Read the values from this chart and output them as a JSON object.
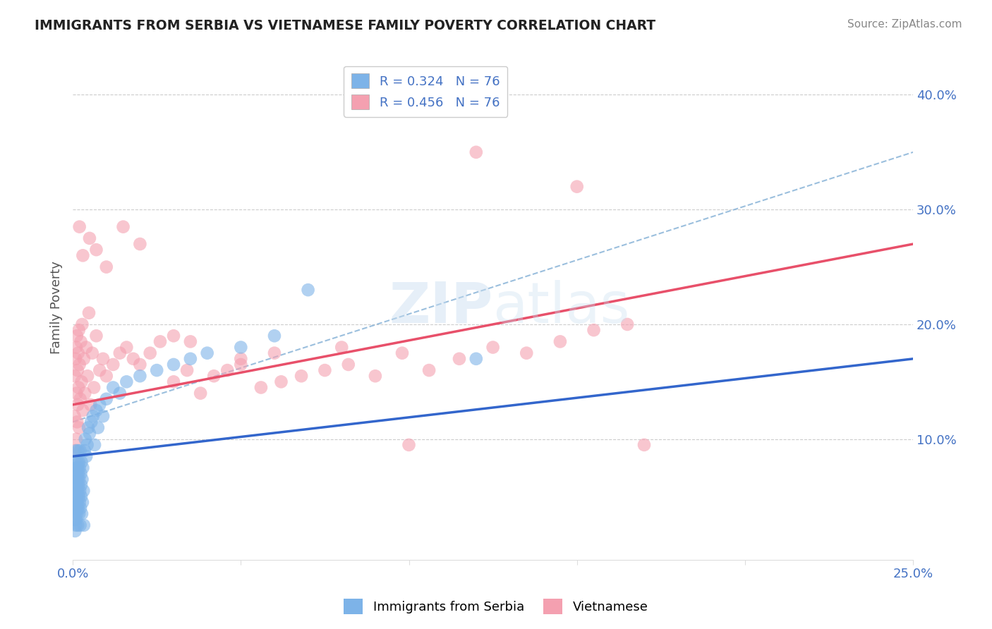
{
  "title": "IMMIGRANTS FROM SERBIA VS VIETNAMESE FAMILY POVERTY CORRELATION CHART",
  "source": "Source: ZipAtlas.com",
  "xlabel_bottom": "Immigrants from Serbia",
  "xlabel_right": "Vietnamese",
  "ylabel": "Family Poverty",
  "xlim": [
    0.0,
    0.25
  ],
  "ylim": [
    -0.005,
    0.435
  ],
  "y_ticks_right": [
    0.1,
    0.2,
    0.3,
    0.4
  ],
  "y_tick_labels_right": [
    "10.0%",
    "20.0%",
    "30.0%",
    "40.0%"
  ],
  "serbia_color": "#7db3e8",
  "vietnamese_color": "#f4a0b0",
  "serbia_R": 0.324,
  "vietnamese_R": 0.456,
  "N": 76,
  "watermark_zip": "ZIP",
  "watermark_atlas": "atlas",
  "serbia_line": [
    0.085,
    0.17
  ],
  "vietnamese_line": [
    0.13,
    0.27
  ],
  "dashed_line": [
    0.115,
    0.35
  ],
  "serbia_points_x": [
    0.0005,
    0.0005,
    0.0005,
    0.0006,
    0.0006,
    0.0007,
    0.0007,
    0.0008,
    0.0008,
    0.0009,
    0.001,
    0.001,
    0.001,
    0.001,
    0.001,
    0.0011,
    0.0011,
    0.0012,
    0.0012,
    0.0013,
    0.0013,
    0.0014,
    0.0014,
    0.0015,
    0.0015,
    0.0015,
    0.0016,
    0.0016,
    0.0017,
    0.0017,
    0.0018,
    0.0018,
    0.0019,
    0.0019,
    0.002,
    0.002,
    0.0021,
    0.0022,
    0.0022,
    0.0023,
    0.0024,
    0.0025,
    0.0025,
    0.0026,
    0.0027,
    0.0028,
    0.0029,
    0.003,
    0.0032,
    0.0033,
    0.0035,
    0.0037,
    0.004,
    0.0043,
    0.0046,
    0.005,
    0.0055,
    0.006,
    0.0065,
    0.007,
    0.0075,
    0.008,
    0.009,
    0.01,
    0.012,
    0.014,
    0.016,
    0.02,
    0.025,
    0.03,
    0.035,
    0.04,
    0.05,
    0.06,
    0.07,
    0.12
  ],
  "serbia_points_y": [
    0.05,
    0.03,
    0.07,
    0.04,
    0.06,
    0.02,
    0.08,
    0.035,
    0.065,
    0.025,
    0.055,
    0.045,
    0.075,
    0.03,
    0.09,
    0.04,
    0.07,
    0.06,
    0.05,
    0.08,
    0.035,
    0.065,
    0.045,
    0.075,
    0.055,
    0.025,
    0.09,
    0.04,
    0.07,
    0.06,
    0.05,
    0.08,
    0.035,
    0.065,
    0.045,
    0.075,
    0.055,
    0.025,
    0.09,
    0.04,
    0.07,
    0.06,
    0.05,
    0.08,
    0.035,
    0.065,
    0.045,
    0.075,
    0.055,
    0.025,
    0.09,
    0.1,
    0.085,
    0.095,
    0.11,
    0.105,
    0.115,
    0.12,
    0.095,
    0.125,
    0.11,
    0.13,
    0.12,
    0.135,
    0.145,
    0.14,
    0.15,
    0.155,
    0.16,
    0.165,
    0.17,
    0.175,
    0.18,
    0.19,
    0.23,
    0.17
  ],
  "vietnamese_points_x": [
    0.0005,
    0.0006,
    0.0007,
    0.0008,
    0.001,
    0.001,
    0.0011,
    0.0012,
    0.0013,
    0.0014,
    0.0015,
    0.0016,
    0.0017,
    0.0018,
    0.0019,
    0.002,
    0.0022,
    0.0024,
    0.0026,
    0.0028,
    0.003,
    0.0033,
    0.0036,
    0.004,
    0.0044,
    0.0048,
    0.0053,
    0.0058,
    0.0063,
    0.007,
    0.008,
    0.009,
    0.01,
    0.012,
    0.014,
    0.016,
    0.018,
    0.02,
    0.023,
    0.026,
    0.03,
    0.034,
    0.038,
    0.042,
    0.046,
    0.05,
    0.056,
    0.062,
    0.068,
    0.075,
    0.082,
    0.09,
    0.098,
    0.106,
    0.115,
    0.125,
    0.135,
    0.145,
    0.155,
    0.165,
    0.002,
    0.003,
    0.005,
    0.007,
    0.01,
    0.015,
    0.02,
    0.03,
    0.035,
    0.05,
    0.06,
    0.08,
    0.1,
    0.12,
    0.15,
    0.17
  ],
  "vietnamese_points_y": [
    0.12,
    0.155,
    0.09,
    0.17,
    0.1,
    0.18,
    0.14,
    0.19,
    0.115,
    0.16,
    0.13,
    0.175,
    0.145,
    0.195,
    0.11,
    0.165,
    0.135,
    0.185,
    0.15,
    0.2,
    0.125,
    0.17,
    0.14,
    0.18,
    0.155,
    0.21,
    0.13,
    0.175,
    0.145,
    0.19,
    0.16,
    0.17,
    0.155,
    0.165,
    0.175,
    0.18,
    0.17,
    0.165,
    0.175,
    0.185,
    0.15,
    0.16,
    0.14,
    0.155,
    0.16,
    0.165,
    0.145,
    0.15,
    0.155,
    0.16,
    0.165,
    0.155,
    0.175,
    0.16,
    0.17,
    0.18,
    0.175,
    0.185,
    0.195,
    0.2,
    0.285,
    0.26,
    0.275,
    0.265,
    0.25,
    0.285,
    0.27,
    0.19,
    0.185,
    0.17,
    0.175,
    0.18,
    0.095,
    0.35,
    0.32,
    0.095
  ]
}
